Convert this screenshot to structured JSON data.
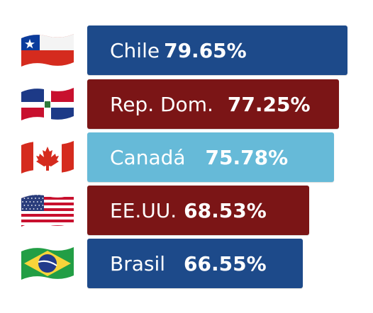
{
  "chart_data": {
    "type": "bar",
    "orientation": "horizontal",
    "categories": [
      "Chile",
      "Rep. Dom.",
      "Canadá",
      "EE.UU.",
      "Brasil"
    ],
    "values": [
      79.65,
      77.25,
      75.78,
      68.53,
      66.55
    ],
    "value_labels": [
      "79.65%",
      "77.25%",
      "75.78%",
      "68.53%",
      "66.55%"
    ],
    "bar_colors": [
      "#1d4a8a",
      "#7b1516",
      "#66bad8",
      "#7b1516",
      "#1d4a8a"
    ],
    "flags": [
      "chile-flag-icon",
      "dominican-republic-flag-icon",
      "canada-flag-icon",
      "usa-flag-icon",
      "brazil-flag-icon"
    ],
    "grid": false,
    "legend": "none"
  }
}
